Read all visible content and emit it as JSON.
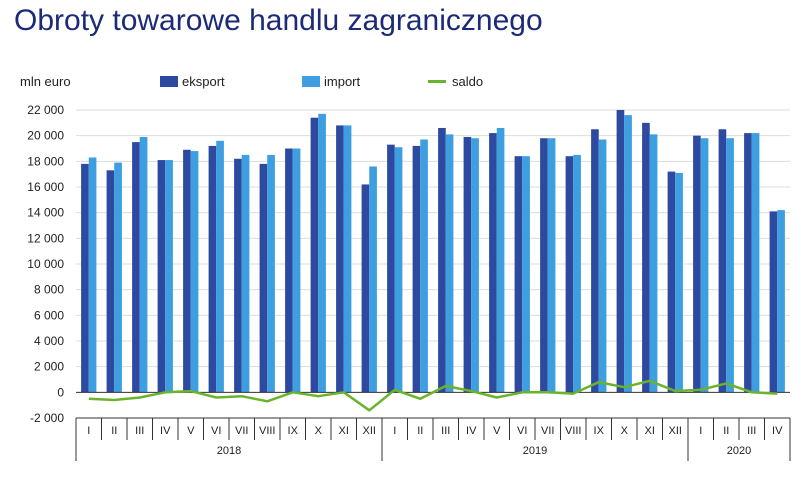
{
  "title": "Obroty towarowe handlu zagranicznego",
  "colors": {
    "eksport": "#2e4aa0",
    "import": "#3d9ee0",
    "saldo": "#6ab42d",
    "grid": "#dddddd",
    "axis": "#333333"
  },
  "chart_data": {
    "type": "bar",
    "unit_label": "mln euro",
    "legend": [
      "eksport",
      "import",
      "saldo"
    ],
    "legend_position": "top",
    "ylim": [
      -2000,
      22000
    ],
    "y_ticks": [
      "-2 000",
      "0",
      "2 000",
      "4 000",
      "6 000",
      "8 000",
      "10 000",
      "12 000",
      "14 000",
      "16 000",
      "18 000",
      "20 000",
      "22 000"
    ],
    "grid": true,
    "categories": [
      "I",
      "II",
      "III",
      "IV",
      "V",
      "VI",
      "VII",
      "VIII",
      "IX",
      "X",
      "XI",
      "XII",
      "I",
      "II",
      "III",
      "IV",
      "V",
      "VI",
      "VII",
      "VIII",
      "IX",
      "X",
      "XI",
      "XII",
      "I",
      "II",
      "III",
      "IV"
    ],
    "years": [
      {
        "label": "2018",
        "months": 12
      },
      {
        "label": "2019",
        "months": 12
      },
      {
        "label": "2020",
        "months": 4
      }
    ],
    "series": [
      {
        "name": "eksport",
        "kind": "bar",
        "values": [
          17800,
          17300,
          19500,
          18100,
          18900,
          19200,
          18200,
          17800,
          19000,
          21400,
          20800,
          16200,
          19300,
          19200,
          20600,
          19900,
          20200,
          18400,
          19800,
          18400,
          20500,
          22000,
          21000,
          17200,
          20000,
          20500,
          20200,
          14100
        ]
      },
      {
        "name": "import",
        "kind": "bar",
        "values": [
          18300,
          17900,
          19900,
          18100,
          18800,
          19600,
          18500,
          18500,
          19000,
          21700,
          20800,
          17600,
          19100,
          19700,
          20100,
          19800,
          20600,
          18400,
          19800,
          18500,
          19700,
          21600,
          20100,
          17100,
          19800,
          19800,
          20200,
          14200
        ]
      },
      {
        "name": "saldo",
        "kind": "line",
        "values": [
          -500,
          -600,
          -400,
          0,
          100,
          -400,
          -300,
          -700,
          0,
          -300,
          0,
          -1400,
          200,
          -500,
          500,
          100,
          -400,
          0,
          0,
          -100,
          800,
          400,
          900,
          100,
          200,
          700,
          0,
          -100
        ]
      }
    ]
  }
}
